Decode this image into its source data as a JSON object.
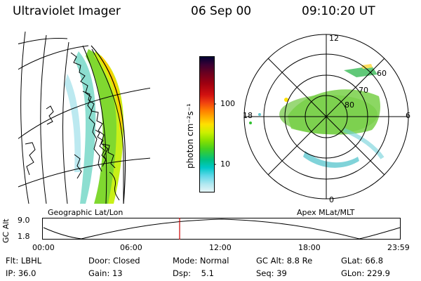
{
  "header": {
    "instrument": "Ultraviolet Imager",
    "date": "06 Sep 00",
    "time": "09:10:20 UT"
  },
  "left_panel": {
    "caption": "Geographic Lat/Lon"
  },
  "right_panel": {
    "caption": "Apex MLat/MLT",
    "mlt_labels": [
      "12",
      "18",
      "6",
      "0"
    ],
    "lat_labels": [
      "60",
      "70",
      "80"
    ]
  },
  "colorbar": {
    "unit_label": "photon cm⁻²s⁻¹",
    "ticks": [
      "100",
      "10"
    ],
    "colors": [
      "#000033",
      "#3a0033",
      "#6a0020",
      "#a00010",
      "#d01010",
      "#f04010",
      "#ff8000",
      "#ffb000",
      "#ffe000",
      "#ccf000",
      "#88e000",
      "#44d020",
      "#00c080",
      "#00c8c8",
      "#60d8e8",
      "#b0e8f0",
      "#e8f6f8"
    ]
  },
  "altitude_plot": {
    "ylabel": "GC Alt",
    "yticks": [
      "9.0",
      "1.8"
    ],
    "xticks": [
      "00:00",
      "06:00",
      "12:00",
      "18:00",
      "23:59"
    ],
    "marker_color": "#cc0000"
  },
  "info": {
    "rows": [
      [
        "Flt: LBHL",
        "Door: Closed",
        "Mode: Normal",
        "GC Alt: 8.8 Re",
        "GLat:  66.8"
      ],
      [
        "IP: 36.0",
        "Gain: 13",
        "Dsp:    5.1",
        "Seq: 39",
        "GLon: 229.9"
      ]
    ]
  }
}
